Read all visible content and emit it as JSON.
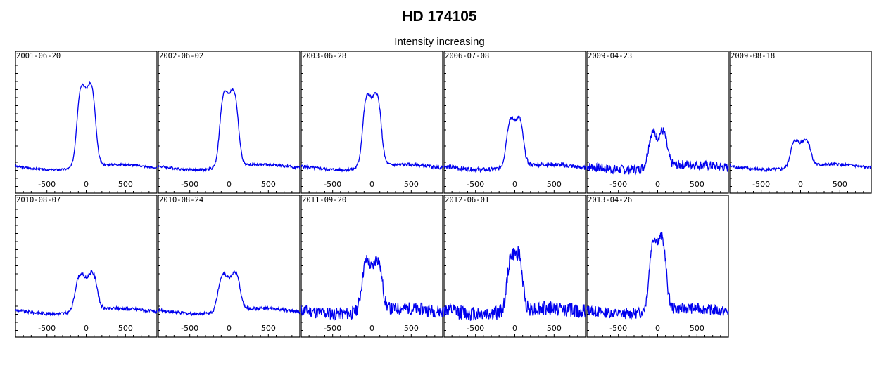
{
  "title": "HD 174105",
  "subtitle": "Intensity increasing",
  "colors": {
    "line": "#0000ee",
    "axes": "#000000",
    "frame": "#6e6e6e"
  },
  "chart_data": {
    "type": "line",
    "x_tick_labels": [
      "-500",
      "0",
      "500"
    ],
    "x_ticks": [
      -500,
      0,
      500
    ],
    "xlim": [
      -900,
      900
    ],
    "ylim": [
      0.8,
      3.0
    ],
    "panels": [
      {
        "date": "2001-06-20",
        "peak": 2.7,
        "width": 1.0,
        "noise": 0.01,
        "dip": 0.2
      },
      {
        "date": "2002-06-02",
        "peak": 2.55,
        "width": 1.0,
        "noise": 0.012,
        "dip": 0.14
      },
      {
        "date": "2003-06-28",
        "peak": 2.5,
        "width": 1.0,
        "noise": 0.015,
        "dip": 0.18
      },
      {
        "date": "2006-07-08",
        "peak": 2.05,
        "width": 0.9,
        "noise": 0.02,
        "dip": 0.16
      },
      {
        "date": "2009-04-23",
        "peak": 1.75,
        "width": 1.0,
        "noise": 0.045,
        "dip": 0.18
      },
      {
        "date": "2009-08-18",
        "peak": 1.55,
        "width": 1.1,
        "noise": 0.015,
        "dip": 0.08
      },
      {
        "date": "2010-08-07",
        "peak": 1.75,
        "width": 1.2,
        "noise": 0.015,
        "dip": 0.12
      },
      {
        "date": "2010-08-24",
        "peak": 1.75,
        "width": 1.2,
        "noise": 0.015,
        "dip": 0.12
      },
      {
        "date": "2011-09-20",
        "peak": 2.05,
        "width": 1.1,
        "noise": 0.06,
        "dip": 0.22
      },
      {
        "date": "2012-06-01",
        "peak": 2.25,
        "width": 0.8,
        "noise": 0.07,
        "dip": 0.18
      },
      {
        "date": "2013-04-26",
        "peak": 2.55,
        "width": 0.9,
        "noise": 0.05,
        "dip": 0.2
      }
    ]
  }
}
